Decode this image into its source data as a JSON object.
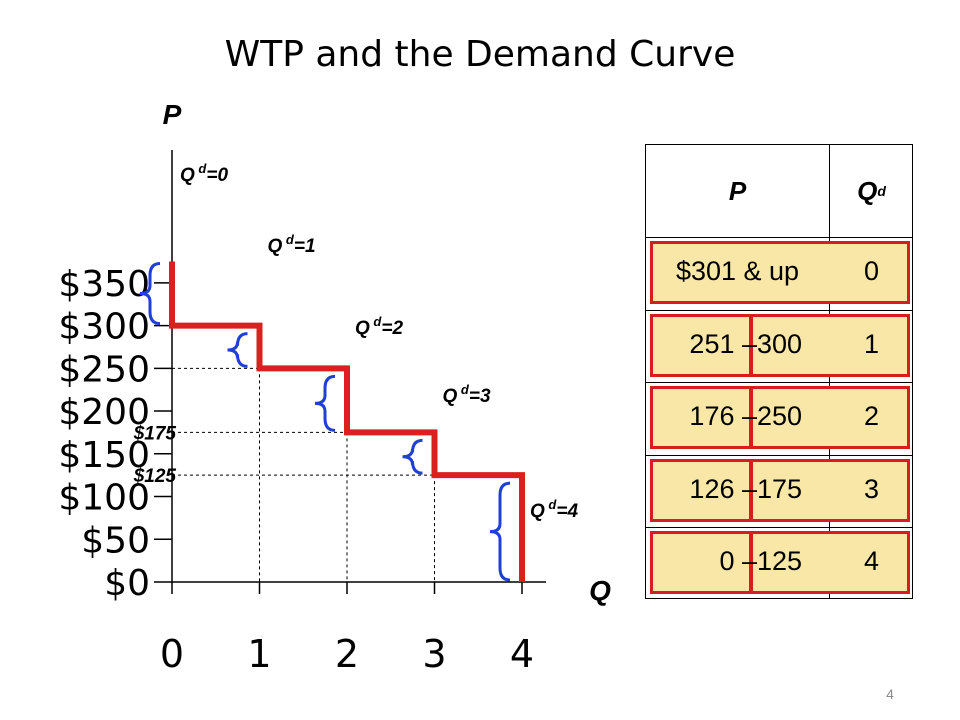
{
  "title": "WTP and the Demand Curve",
  "page_number": "4",
  "colors": {
    "step_line": "#dd1f1f",
    "brace": "#1f3fd6",
    "table_fill": "#f8e7a6",
    "table_border": "#d71e1e"
  },
  "chart_data": {
    "type": "line",
    "title": "WTP and the Demand Curve",
    "xlabel": "Q",
    "ylabel": "P",
    "x_ticks": [
      "0",
      "1",
      "2",
      "3",
      "4"
    ],
    "y_ticks": [
      "$0",
      "$50",
      "$100",
      "$150",
      "$200",
      "$250",
      "$300",
      "$350"
    ],
    "xlim": [
      0,
      4
    ],
    "ylim": [
      0,
      350
    ],
    "extra_y_labels": [
      {
        "label": "$175",
        "value": 175
      },
      {
        "label": "$125",
        "value": 125
      }
    ],
    "series": [
      {
        "style": "step",
        "points": [
          [
            0,
            375
          ],
          [
            0,
            300
          ],
          [
            1,
            300
          ],
          [
            1,
            250
          ],
          [
            2,
            250
          ],
          [
            2,
            175
          ],
          [
            3,
            175
          ],
          [
            3,
            125
          ],
          [
            4,
            125
          ],
          [
            4,
            0
          ]
        ]
      }
    ],
    "annotations": [
      {
        "label_main": "Q",
        "label_sup": "d",
        "label_rest": "=0",
        "price_range": [
          300,
          375
        ]
      },
      {
        "label_main": "Q",
        "label_sup": "d",
        "label_rest": "=1",
        "price_range": [
          250,
          300
        ]
      },
      {
        "label_main": "Q",
        "label_sup": "d",
        "label_rest": "=2",
        "price_range": [
          175,
          250
        ]
      },
      {
        "label_main": "Q",
        "label_sup": "d",
        "label_rest": "=3",
        "price_range": [
          125,
          175
        ]
      },
      {
        "label_main": "Q",
        "label_sup": "d",
        "label_rest": "=4",
        "price_range": [
          0,
          125
        ]
      }
    ],
    "grid": "dashed guides at step corners"
  },
  "table": {
    "header_p": "P",
    "header_qd_main": "Q",
    "header_qd_sup": "d",
    "rows": [
      {
        "range_low": "$301 & up",
        "range_dash": "",
        "range_high": "",
        "qd": "0"
      },
      {
        "range_low": "251",
        "range_dash": "–",
        "range_high": "300",
        "qd": "1"
      },
      {
        "range_low": "176",
        "range_dash": "–",
        "range_high": "250",
        "qd": "2"
      },
      {
        "range_low": "126",
        "range_dash": "–",
        "range_high": "175",
        "qd": "3"
      },
      {
        "range_low": "0",
        "range_dash": "–",
        "range_high": "125",
        "qd": "4"
      }
    ]
  }
}
